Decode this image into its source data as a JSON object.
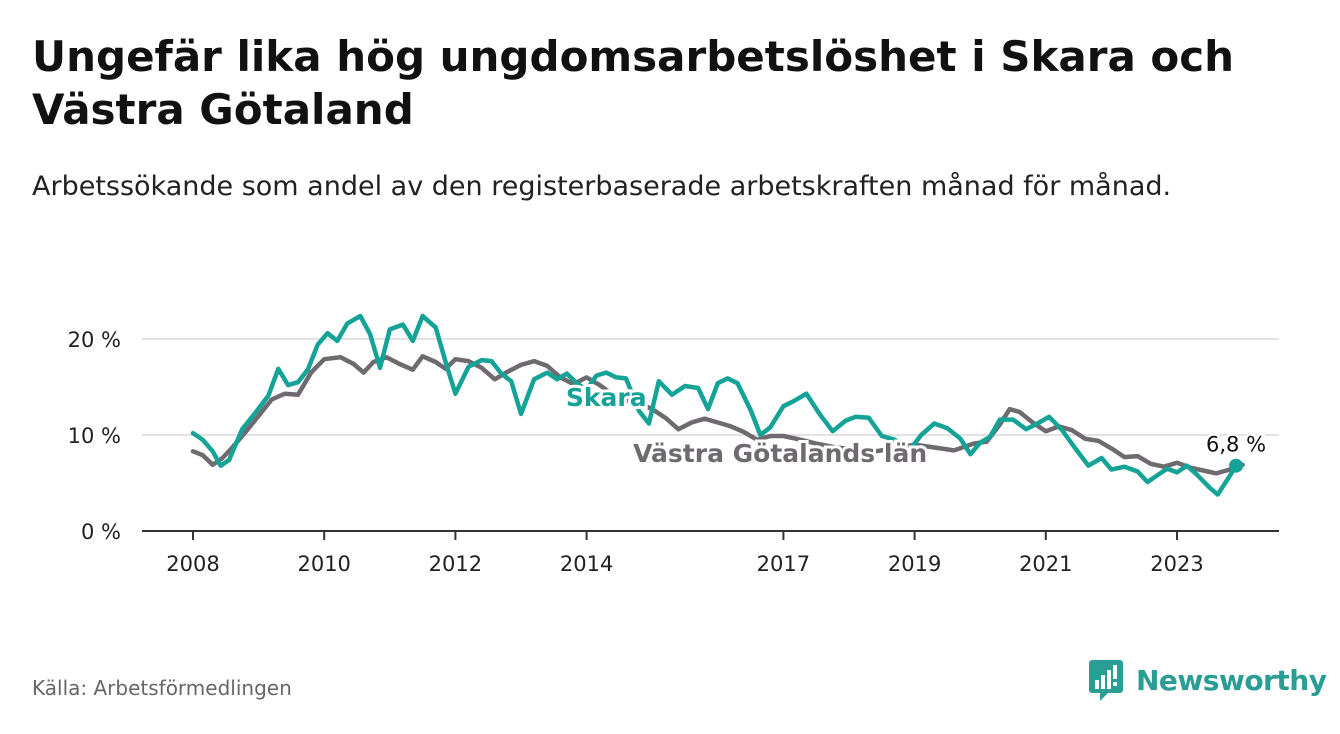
{
  "title": "Ungefär lika hög ungdomsarbetslöshet i Skara och Västra Götaland",
  "subtitle": "Arbetssökande som andel av den registerbaserade arbetskraften månad för månad.",
  "source": "Källa: Arbetsförmedlingen",
  "brand": "Newsworthy",
  "colors": {
    "skara": "#14a396",
    "vg": "#6e6a70",
    "grid": "#d9d9d9",
    "axis": "#333333",
    "brand": "#2a9d95"
  },
  "chart_data": {
    "type": "line",
    "title": "Ungefär lika hög ungdomsarbetslöshet i Skara och Västra Götaland",
    "xlabel": "",
    "ylabel": "",
    "xlim": [
      2007.75,
      2024.5
    ],
    "ylim": [
      0,
      20
    ],
    "y_ticks": [
      {
        "value": 0,
        "label": "0 %"
      },
      {
        "value": 10,
        "label": "10 %"
      },
      {
        "value": 20,
        "label": "20 %"
      }
    ],
    "x_ticks": [
      {
        "value": 2008,
        "label": "2008"
      },
      {
        "value": 2010,
        "label": "2010"
      },
      {
        "value": 2012,
        "label": "2012"
      },
      {
        "value": 2014,
        "label": "2014"
      },
      {
        "value": 2017,
        "label": "2017"
      },
      {
        "value": 2019,
        "label": "2019"
      },
      {
        "value": 2021,
        "label": "2021"
      },
      {
        "value": 2023,
        "label": "2023"
      }
    ],
    "series": [
      {
        "name": "Västra Götalands län",
        "color": "#6e6a70",
        "label_at": [
          2016.95,
          7.2
        ],
        "points": [
          [
            2008.0,
            8.3
          ],
          [
            2008.15,
            7.9
          ],
          [
            2008.3,
            6.9
          ],
          [
            2008.45,
            7.6
          ],
          [
            2008.6,
            8.7
          ],
          [
            2008.8,
            10.3
          ],
          [
            2009.0,
            12.0
          ],
          [
            2009.2,
            13.7
          ],
          [
            2009.4,
            14.3
          ],
          [
            2009.6,
            14.2
          ],
          [
            2009.8,
            16.5
          ],
          [
            2010.0,
            17.9
          ],
          [
            2010.25,
            18.1
          ],
          [
            2010.45,
            17.4
          ],
          [
            2010.6,
            16.5
          ],
          [
            2010.75,
            17.6
          ],
          [
            2010.95,
            18.1
          ],
          [
            2011.15,
            17.4
          ],
          [
            2011.35,
            16.8
          ],
          [
            2011.5,
            18.2
          ],
          [
            2011.7,
            17.6
          ],
          [
            2011.85,
            16.9
          ],
          [
            2012.0,
            17.9
          ],
          [
            2012.2,
            17.7
          ],
          [
            2012.4,
            17.0
          ],
          [
            2012.6,
            15.8
          ],
          [
            2012.8,
            16.6
          ],
          [
            2013.0,
            17.3
          ],
          [
            2013.2,
            17.7
          ],
          [
            2013.4,
            17.2
          ],
          [
            2013.6,
            16.0
          ],
          [
            2013.8,
            15.3
          ],
          [
            2014.0,
            16.0
          ],
          [
            2014.2,
            15.2
          ],
          [
            2014.4,
            14.2
          ],
          [
            2014.6,
            13.6
          ],
          [
            2014.8,
            13.3
          ],
          [
            2015.0,
            12.7
          ],
          [
            2015.2,
            11.8
          ],
          [
            2015.4,
            10.6
          ],
          [
            2015.6,
            11.3
          ],
          [
            2015.8,
            11.7
          ],
          [
            2016.0,
            11.3
          ],
          [
            2016.2,
            10.9
          ],
          [
            2016.4,
            10.3
          ],
          [
            2016.6,
            9.5
          ],
          [
            2016.8,
            9.9
          ],
          [
            2017.0,
            9.9
          ],
          [
            2017.2,
            9.6
          ],
          [
            2017.5,
            9.1
          ],
          [
            2017.8,
            8.7
          ],
          [
            2018.1,
            8.5
          ],
          [
            2018.4,
            8.3
          ],
          [
            2018.7,
            8.6
          ],
          [
            2019.0,
            9.0
          ],
          [
            2019.3,
            8.7
          ],
          [
            2019.6,
            8.4
          ],
          [
            2019.9,
            9.1
          ],
          [
            2020.1,
            9.3
          ],
          [
            2020.3,
            11.1
          ],
          [
            2020.45,
            12.7
          ],
          [
            2020.6,
            12.4
          ],
          [
            2020.8,
            11.3
          ],
          [
            2021.0,
            10.4
          ],
          [
            2021.2,
            10.9
          ],
          [
            2021.4,
            10.5
          ],
          [
            2021.6,
            9.6
          ],
          [
            2021.8,
            9.4
          ],
          [
            2022.0,
            8.6
          ],
          [
            2022.2,
            7.7
          ],
          [
            2022.4,
            7.8
          ],
          [
            2022.6,
            7.0
          ],
          [
            2022.8,
            6.7
          ],
          [
            2023.0,
            7.1
          ],
          [
            2023.2,
            6.6
          ],
          [
            2023.4,
            6.3
          ],
          [
            2023.6,
            6.0
          ],
          [
            2023.8,
            6.4
          ],
          [
            2024.0,
            6.9
          ]
        ]
      },
      {
        "name": "Skara",
        "color": "#14a396",
        "label_at": [
          2014.3,
          13.0
        ],
        "last_label": "6,8 %",
        "points": [
          [
            2008.0,
            10.2
          ],
          [
            2008.15,
            9.5
          ],
          [
            2008.3,
            8.3
          ],
          [
            2008.42,
            6.8
          ],
          [
            2008.55,
            7.4
          ],
          [
            2008.75,
            10.6
          ],
          [
            2008.95,
            12.3
          ],
          [
            2009.15,
            14.1
          ],
          [
            2009.3,
            16.9
          ],
          [
            2009.45,
            15.2
          ],
          [
            2009.6,
            15.5
          ],
          [
            2009.75,
            16.8
          ],
          [
            2009.9,
            19.4
          ],
          [
            2010.05,
            20.6
          ],
          [
            2010.2,
            19.8
          ],
          [
            2010.35,
            21.6
          ],
          [
            2010.55,
            22.4
          ],
          [
            2010.7,
            20.5
          ],
          [
            2010.85,
            17.0
          ],
          [
            2011.0,
            21.0
          ],
          [
            2011.2,
            21.5
          ],
          [
            2011.35,
            19.8
          ],
          [
            2011.5,
            22.4
          ],
          [
            2011.7,
            21.2
          ],
          [
            2011.85,
            17.6
          ],
          [
            2012.0,
            14.3
          ],
          [
            2012.2,
            17.1
          ],
          [
            2012.4,
            17.8
          ],
          [
            2012.55,
            17.7
          ],
          [
            2012.7,
            16.4
          ],
          [
            2012.85,
            15.6
          ],
          [
            2013.0,
            12.2
          ],
          [
            2013.2,
            15.8
          ],
          [
            2013.4,
            16.5
          ],
          [
            2013.55,
            15.8
          ],
          [
            2013.7,
            16.4
          ],
          [
            2013.85,
            15.4
          ],
          [
            2014.0,
            14.7
          ],
          [
            2014.15,
            16.2
          ],
          [
            2014.3,
            16.5
          ],
          [
            2014.45,
            16.0
          ],
          [
            2014.6,
            15.9
          ],
          [
            2014.8,
            12.5
          ],
          [
            2014.95,
            11.2
          ],
          [
            2015.1,
            15.6
          ],
          [
            2015.3,
            14.2
          ],
          [
            2015.5,
            15.1
          ],
          [
            2015.7,
            14.9
          ],
          [
            2015.85,
            12.7
          ],
          [
            2016.0,
            15.4
          ],
          [
            2016.15,
            15.9
          ],
          [
            2016.3,
            15.4
          ],
          [
            2016.5,
            12.6
          ],
          [
            2016.65,
            10.0
          ],
          [
            2016.8,
            10.8
          ],
          [
            2017.0,
            13.0
          ],
          [
            2017.15,
            13.5
          ],
          [
            2017.35,
            14.3
          ],
          [
            2017.55,
            12.2
          ],
          [
            2017.75,
            10.4
          ],
          [
            2017.95,
            11.5
          ],
          [
            2018.1,
            11.9
          ],
          [
            2018.3,
            11.8
          ],
          [
            2018.5,
            9.9
          ],
          [
            2018.7,
            9.5
          ],
          [
            2018.9,
            8.2
          ],
          [
            2019.1,
            10.0
          ],
          [
            2019.3,
            11.2
          ],
          [
            2019.5,
            10.7
          ],
          [
            2019.7,
            9.6
          ],
          [
            2019.85,
            8.0
          ],
          [
            2020.0,
            9.2
          ],
          [
            2020.15,
            9.8
          ],
          [
            2020.3,
            11.6
          ],
          [
            2020.5,
            11.6
          ],
          [
            2020.7,
            10.6
          ],
          [
            2020.9,
            11.3
          ],
          [
            2021.05,
            11.9
          ],
          [
            2021.25,
            10.5
          ],
          [
            2021.45,
            8.6
          ],
          [
            2021.65,
            6.8
          ],
          [
            2021.85,
            7.6
          ],
          [
            2022.0,
            6.4
          ],
          [
            2022.2,
            6.7
          ],
          [
            2022.4,
            6.2
          ],
          [
            2022.55,
            5.1
          ],
          [
            2022.7,
            5.8
          ],
          [
            2022.85,
            6.5
          ],
          [
            2023.0,
            6.1
          ],
          [
            2023.15,
            6.8
          ],
          [
            2023.3,
            5.9
          ],
          [
            2023.5,
            4.5
          ],
          [
            2023.62,
            3.8
          ],
          [
            2023.8,
            5.7
          ],
          [
            2023.9,
            6.8
          ]
        ]
      }
    ]
  }
}
